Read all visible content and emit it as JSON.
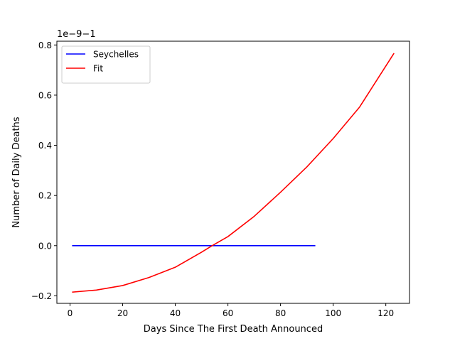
{
  "chart_data": {
    "type": "line",
    "xlabel": "Days Since The First Death Announced",
    "ylabel": "Number of Daily Deaths",
    "offset_text": "1e−9−1",
    "xlim": [
      -5,
      129
    ],
    "ylim": [
      -0.23,
      0.815
    ],
    "x_ticks": [
      0,
      20,
      40,
      60,
      80,
      100,
      120
    ],
    "x_tick_labels": [
      "0",
      "20",
      "40",
      "60",
      "80",
      "100",
      "120"
    ],
    "y_ticks": [
      -0.2,
      0.0,
      0.2,
      0.4,
      0.6,
      0.8
    ],
    "y_tick_labels": [
      "−0.2",
      "0.0",
      "0.2",
      "0.4",
      "0.6",
      "0.8"
    ],
    "grid": false,
    "legend_position": "top-left",
    "series": [
      {
        "name": "Seychelles",
        "color": "#0000ff",
        "x": [
          1,
          93
        ],
        "y": [
          0.0,
          0.0
        ]
      },
      {
        "name": "Fit",
        "color": "#ff0000",
        "x": [
          1,
          10,
          20,
          30,
          40,
          50,
          54,
          60,
          70,
          80,
          90,
          100,
          110,
          123
        ],
        "y": [
          -0.185,
          -0.177,
          -0.159,
          -0.127,
          -0.086,
          -0.026,
          0.0,
          0.036,
          0.117,
          0.213,
          0.314,
          0.427,
          0.552,
          0.765
        ]
      }
    ]
  }
}
